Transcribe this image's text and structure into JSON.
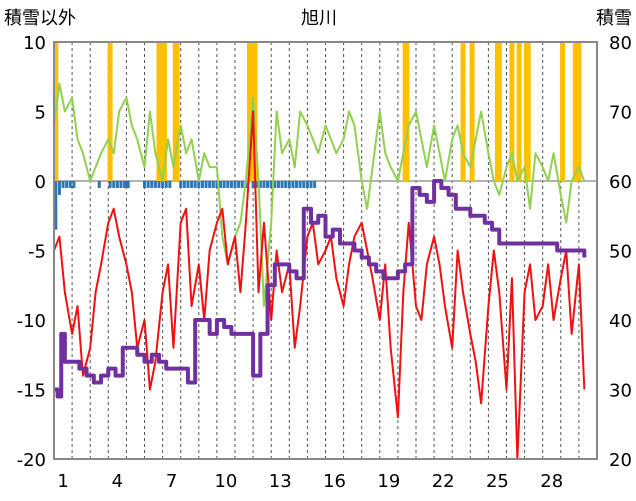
{
  "chart_data": {
    "type": "line",
    "title": "旭川",
    "left_axis_label": "積雪以外",
    "right_axis_label": "積雪",
    "left_ylim": [
      -20,
      10
    ],
    "left_ticks": [
      "10",
      "5",
      "0",
      "-5",
      "-10",
      "-15",
      "-20"
    ],
    "right_ylim": [
      20,
      80
    ],
    "right_ticks": [
      "80",
      "70",
      "60",
      "50",
      "40",
      "30",
      "20"
    ],
    "xlim": [
      0,
      30
    ],
    "x_ticks": [
      "1",
      "4",
      "7",
      "10",
      "13",
      "16",
      "19",
      "22",
      "25",
      "28"
    ],
    "grid": "vertical dashed daily",
    "series": [
      {
        "role": "air-temperature",
        "axis": "left",
        "color": "#ee1111",
        "x": [
          0.0,
          0.3,
          0.6,
          1.0,
          1.3,
          1.6,
          2.0,
          2.3,
          2.6,
          3.0,
          3.3,
          3.6,
          4.0,
          4.3,
          4.6,
          5.0,
          5.3,
          5.6,
          6.0,
          6.3,
          6.6,
          7.0,
          7.3,
          7.6,
          8.0,
          8.3,
          8.6,
          9.0,
          9.3,
          9.6,
          10.0,
          10.3,
          10.6,
          11.0,
          11.3,
          11.6,
          12.0,
          12.3,
          12.6,
          13.0,
          13.3,
          13.6,
          14.0,
          14.3,
          14.6,
          15.0,
          15.3,
          15.6,
          16.0,
          16.3,
          16.6,
          17.0,
          17.3,
          17.6,
          18.0,
          18.3,
          18.6,
          19.0,
          19.3,
          19.6,
          20.0,
          20.3,
          20.6,
          21.0,
          21.3,
          21.6,
          22.0,
          22.3,
          22.6,
          23.0,
          23.3,
          23.6,
          24.0,
          24.3,
          24.6,
          25.0,
          25.3,
          25.6,
          26.0,
          26.3,
          26.6,
          27.0,
          27.3,
          27.6,
          28.0,
          28.3,
          28.6,
          29.0,
          29.3
        ],
        "y": [
          -5,
          -4,
          -8,
          -11,
          -9,
          -14,
          -12,
          -8,
          -6,
          -3,
          -2,
          -4,
          -6,
          -8,
          -12,
          -10,
          -15,
          -13,
          -8,
          -6,
          -12,
          -3,
          -2,
          -9,
          -6,
          -10,
          -5,
          -3,
          -2,
          -6,
          -4,
          -8,
          -3,
          5,
          -8,
          -3,
          -10,
          -5,
          -8,
          -6,
          -12,
          -9,
          -4,
          -3,
          -6,
          -5,
          -4,
          -7,
          -9,
          -6,
          -4,
          -3,
          -5,
          -7,
          -10,
          -6,
          -12,
          -17,
          -8,
          -3,
          -9,
          -10,
          -6,
          -4,
          -6,
          -9,
          -12,
          -5,
          -8,
          -11,
          -13,
          -16,
          -9,
          -5,
          -8,
          -15,
          -7,
          -20,
          -8,
          -6,
          -10,
          -9,
          -6,
          -10,
          -7,
          -5,
          -11,
          -6,
          -15
        ]
      },
      {
        "role": "snow-depth",
        "axis": "right",
        "color": "#7030a0",
        "x": [
          0.0,
          0.2,
          0.4,
          0.6,
          1.0,
          1.4,
          1.8,
          2.2,
          2.6,
          3.0,
          3.4,
          3.8,
          4.2,
          4.6,
          5.0,
          5.4,
          5.8,
          6.2,
          6.6,
          7.0,
          7.4,
          7.8,
          8.2,
          8.6,
          9.0,
          9.4,
          9.8,
          10.2,
          10.6,
          11.0,
          11.4,
          11.8,
          12.2,
          12.6,
          13.0,
          13.4,
          13.8,
          14.2,
          14.6,
          15.0,
          15.4,
          15.8,
          16.2,
          16.6,
          17.0,
          17.4,
          17.8,
          18.2,
          18.6,
          19.0,
          19.4,
          19.8,
          20.2,
          20.6,
          21.0,
          21.4,
          21.8,
          22.2,
          22.6,
          23.0,
          23.4,
          23.8,
          24.2,
          24.6,
          25.0,
          25.4,
          25.8,
          26.2,
          26.6,
          27.0,
          27.4,
          27.8,
          28.2,
          28.6,
          29.0,
          29.3
        ],
        "y": [
          30,
          29,
          38,
          34,
          34,
          33,
          32,
          31,
          32,
          33,
          32,
          36,
          36,
          35,
          34,
          35,
          34,
          33,
          33,
          33,
          31,
          40,
          40,
          38,
          40,
          39,
          38,
          38,
          38,
          32,
          38,
          45,
          48,
          48,
          47,
          46,
          56,
          54,
          55,
          52,
          53,
          51,
          51,
          50,
          49,
          48,
          47,
          46,
          46,
          47,
          48,
          59,
          58,
          57,
          60,
          59,
          58,
          56,
          56,
          55,
          55,
          54,
          53,
          51,
          51,
          51,
          51,
          51,
          51,
          51,
          51,
          50,
          50,
          50,
          50,
          49
        ]
      },
      {
        "role": "humidity-like",
        "axis": "left",
        "color": "#92d050",
        "x": [
          0.0,
          0.3,
          0.6,
          1.0,
          1.3,
          1.6,
          2.0,
          2.3,
          2.6,
          3.0,
          3.3,
          3.6,
          4.0,
          4.3,
          4.6,
          5.0,
          5.3,
          5.6,
          6.0,
          6.3,
          6.6,
          7.0,
          7.3,
          7.6,
          8.0,
          8.3,
          8.6,
          9.0,
          9.3,
          9.6,
          10.0,
          10.3,
          10.6,
          11.0,
          11.3,
          11.6,
          12.0,
          12.3,
          12.6,
          13.0,
          13.3,
          13.6,
          14.0,
          14.3,
          14.6,
          15.0,
          15.3,
          15.6,
          16.0,
          16.3,
          16.6,
          17.0,
          17.3,
          17.6,
          18.0,
          18.3,
          18.6,
          19.0,
          19.3,
          19.6,
          20.0,
          20.3,
          20.6,
          21.0,
          21.3,
          21.6,
          22.0,
          22.3,
          22.6,
          23.0,
          23.3,
          23.6,
          24.0,
          24.3,
          24.6,
          25.0,
          25.3,
          25.6,
          26.0,
          26.3,
          26.6,
          27.0,
          27.3,
          27.6,
          28.0,
          28.3,
          28.6,
          29.0,
          29.3
        ],
        "y": [
          4,
          7,
          5,
          6,
          3,
          2,
          0,
          1,
          2,
          3,
          2,
          5,
          6,
          4,
          3,
          1,
          5,
          2,
          0,
          3,
          1,
          4,
          2,
          3,
          0,
          2,
          1,
          1,
          -4,
          -6,
          -4,
          -3,
          0,
          6,
          0,
          -9,
          -3,
          5,
          2,
          3,
          1,
          5,
          4,
          3,
          2,
          4,
          3,
          2,
          3,
          5,
          4,
          0,
          -2,
          1,
          5,
          2,
          1,
          0,
          2,
          4,
          5,
          3,
          1,
          4,
          2,
          0,
          3,
          4,
          2,
          1,
          3,
          5,
          2,
          0,
          -1,
          1,
          2,
          0,
          1,
          -2,
          2,
          1,
          0,
          2,
          -1,
          -3,
          0,
          1,
          0
        ]
      }
    ],
    "bars_top": {
      "role": "snowfall",
      "axis": "left",
      "color": "#ffc000",
      "x": [
        0.1,
        3.1,
        5.8,
        6.0,
        6.1,
        6.7,
        6.8,
        10.8,
        10.9,
        11.0,
        11.1,
        19.4,
        19.5,
        22.6,
        23.1,
        24.5,
        24.6,
        25.3,
        25.7,
        26.1,
        26.2,
        28.1,
        28.8,
        28.9,
        29.0
      ],
      "y": [
        10,
        10,
        10,
        10,
        10,
        10,
        10,
        10,
        10,
        10,
        10,
        10,
        10,
        10,
        10,
        10,
        10,
        10,
        10,
        10,
        10,
        10,
        10,
        10,
        10
      ]
    },
    "bars_bottom": {
      "role": "precipitation-minus",
      "axis": "left",
      "color": "#2e75b6",
      "x": [
        0.1,
        0.3,
        0.5,
        0.7,
        0.9,
        1.1,
        2.5,
        3.1,
        3.3,
        3.5,
        3.7,
        3.9,
        4.0,
        4.1,
        5.0,
        5.2,
        5.4,
        5.6,
        5.8,
        6.0,
        6.2,
        6.4,
        7.0,
        7.2,
        7.4,
        7.6,
        7.8,
        8.0,
        8.2,
        8.4,
        8.6,
        8.8,
        9.0,
        9.2,
        9.4,
        9.6,
        9.8,
        10.0,
        10.2,
        10.4,
        10.6,
        11.0,
        11.2,
        11.4,
        11.6,
        11.8,
        12.0,
        12.2,
        12.4,
        12.6,
        12.8,
        13.0,
        13.2,
        13.4,
        13.6,
        13.8,
        14.0,
        14.2,
        14.4
      ],
      "y": [
        -3.5,
        -1,
        -0.5,
        -0.5,
        -0.5,
        -0.5,
        -0.5,
        -0.5,
        -0.5,
        -0.5,
        -0.5,
        -0.5,
        -0.5,
        -0.5,
        -0.5,
        -0.5,
        -0.5,
        -0.5,
        -0.5,
        -0.5,
        -0.5,
        -0.5,
        -0.5,
        -0.5,
        -0.5,
        -0.5,
        -0.5,
        -0.5,
        -0.5,
        -0.5,
        -0.5,
        -0.5,
        -0.5,
        -0.5,
        -0.5,
        -0.5,
        -0.5,
        -0.5,
        -0.5,
        -0.5,
        -0.5,
        -0.5,
        -0.5,
        -0.5,
        -0.5,
        -0.5,
        -0.5,
        -0.5,
        -0.5,
        -0.5,
        -0.5,
        -0.5,
        -0.5,
        -0.5,
        -0.5,
        -0.5,
        -0.5,
        -0.5,
        -0.5
      ]
    }
  }
}
